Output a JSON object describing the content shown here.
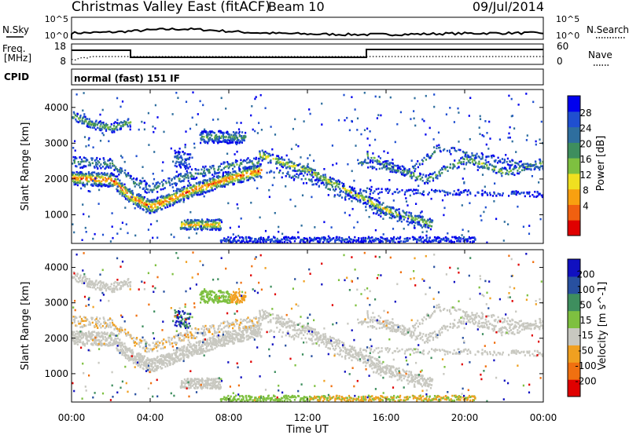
{
  "header": {
    "station": "Christmas Valley East (fitACF)",
    "beam": "Beam 10",
    "date": "09/Jul/2014"
  },
  "panels": {
    "nsky_label": "N.Sky",
    "nsearch_label": "N.Search",
    "freq_label_1": "Freq.",
    "freq_label_2": "[MHz]",
    "nave_label": "Nave",
    "cpid_label": "CPID",
    "cpid_text": "normal (fast) 151 IF",
    "noise_ticks_left": [
      "10^5",
      "10^0"
    ],
    "noise_ticks_right": [
      "10^5",
      "10^0"
    ],
    "freq_ticks": [
      "18",
      "8"
    ],
    "nave_ticks": [
      "60",
      "0"
    ]
  },
  "chart_data": [
    {
      "type": "heatmap",
      "quantity": "Power",
      "colorbar_label": "Power [dB]",
      "colorbar_ticks": [
        "28",
        "24",
        "20",
        "16",
        "12",
        "8",
        "4"
      ],
      "colors": [
        "#0000ee",
        "#1f4fd0",
        "#2e6e9e",
        "#3e8e5e",
        "#7ec040",
        "#f0e020",
        "#f8a010",
        "#f06010",
        "#e00000"
      ],
      "ylabel": "Slant Range [km]",
      "yticks": [
        "4000",
        "3000",
        "2000",
        "1000"
      ],
      "ylim": [
        200,
        4500
      ],
      "features": [
        {
          "band": "main",
          "t": [
            0,
            2,
            3,
            4,
            6,
            8,
            9.5
          ],
          "r": [
            2050,
            2000,
            1500,
            1250,
            1700,
            2050,
            2250
          ]
        },
        {
          "band": "upper",
          "t": [
            0,
            1,
            2,
            2.8
          ],
          "r": [
            3800,
            3550,
            3450,
            3600
          ]
        },
        {
          "band": "decline",
          "t": [
            10,
            12,
            14,
            16,
            18
          ],
          "r": [
            2500,
            2100,
            1600,
            1100,
            700
          ]
        }
      ]
    },
    {
      "type": "heatmap",
      "quantity": "Velocity",
      "colorbar_label": "Velocity [m s^-1]",
      "colorbar_ticks": [
        "200",
        "100",
        "50",
        "15",
        "-15",
        "-50",
        "-100",
        "-200"
      ],
      "colors": [
        "#1010c0",
        "#2850a0",
        "#3e8e5e",
        "#7ec040",
        "#c8c8c0",
        "#f0a020",
        "#f07010",
        "#e00000"
      ],
      "ylabel": "Slant Range [km]",
      "yticks": [
        "4000",
        "3000",
        "2000",
        "1000"
      ],
      "ylim": [
        200,
        4500
      ]
    }
  ],
  "xaxis": {
    "label": "Time UT",
    "ticks": [
      "00:00",
      "04:00",
      "08:00",
      "12:00",
      "16:00",
      "20:00",
      "00:00"
    ]
  }
}
